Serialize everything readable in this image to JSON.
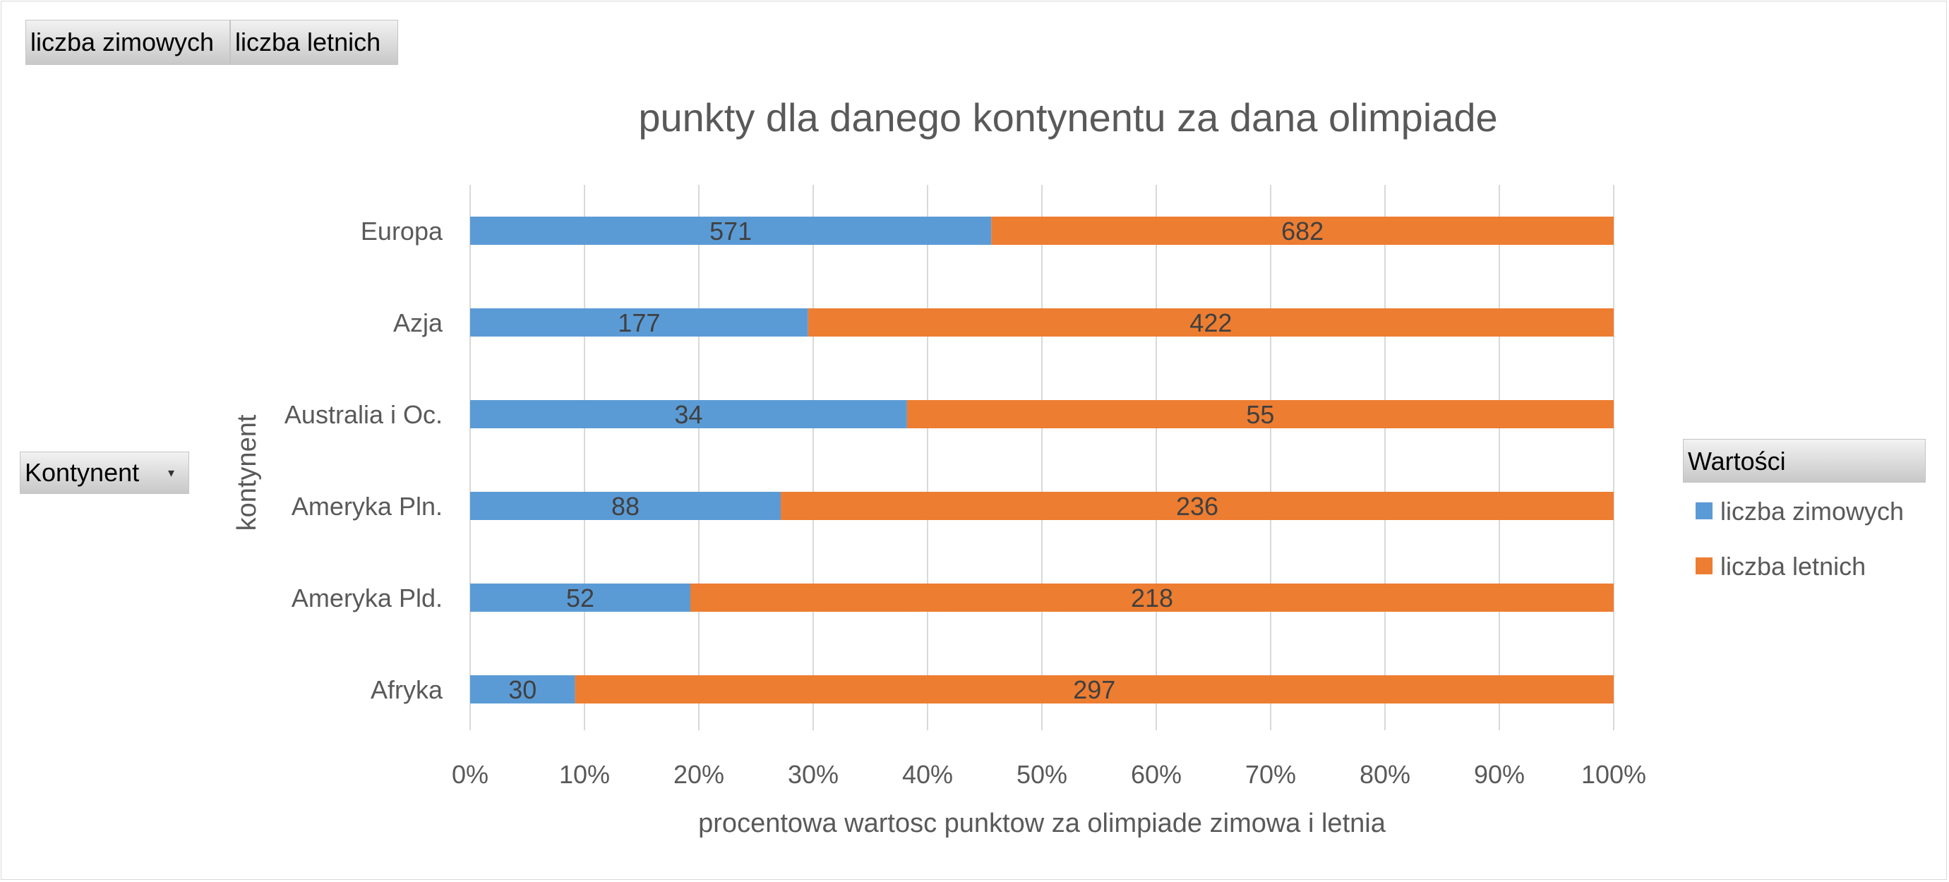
{
  "pivot_buttons": {
    "value_fields": [
      "liczba zimowych",
      "liczba letnich"
    ],
    "row_field": "Kontynent",
    "legend_header": "Wartości"
  },
  "chart_data": {
    "type": "bar",
    "orientation": "horizontal",
    "stacking": "percent",
    "title": "punkty dla danego kontynentu za dana olimpiade",
    "xlabel": "procentowa wartosc punktow za olimpiade zimowa i letnia",
    "ylabel": "kontynent",
    "categories": [
      "Europa",
      "Azja",
      "Australia i Oc.",
      "Ameryka Pln.",
      "Ameryka Pld.",
      "Afryka"
    ],
    "series": [
      {
        "name": "liczba zimowych",
        "color": "#5b9bd5",
        "values": [
          571,
          177,
          34,
          88,
          52,
          30
        ]
      },
      {
        "name": "liczba letnich",
        "color": "#ed7d31",
        "values": [
          682,
          422,
          55,
          236,
          218,
          297
        ]
      }
    ],
    "xlim": [
      0,
      100
    ],
    "xticks": [
      "0%",
      "10%",
      "20%",
      "30%",
      "40%",
      "50%",
      "60%",
      "70%",
      "80%",
      "90%",
      "100%"
    ],
    "grid": "vertical",
    "legend_position": "right"
  }
}
